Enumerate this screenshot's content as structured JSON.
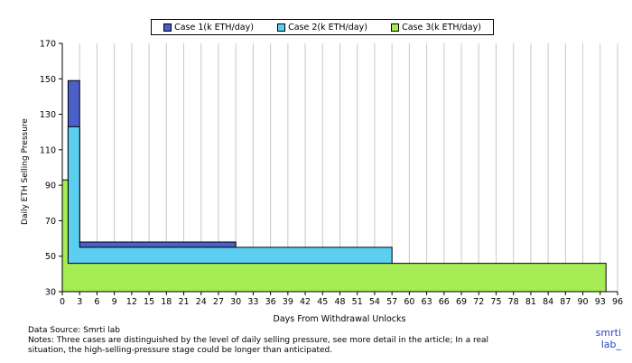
{
  "chart_data": {
    "type": "area",
    "xlabel": "Days From Withdrawal Unlocks",
    "ylabel": "Daily ETH Selling Pressure",
    "xlim": [
      0,
      96
    ],
    "ylim": [
      30,
      170
    ],
    "x_ticks": [
      "0",
      "3",
      "6",
      "9",
      "12",
      "15",
      "18",
      "21",
      "24",
      "27",
      "30",
      "33",
      "36",
      "39",
      "42",
      "45",
      "48",
      "51",
      "54",
      "57",
      "60",
      "63",
      "66",
      "69",
      "72",
      "75",
      "78",
      "81",
      "84",
      "87",
      "90",
      "93",
      "96"
    ],
    "y_ticks": [
      "30",
      "50",
      "70",
      "90",
      "110",
      "130",
      "150",
      "170"
    ],
    "grid": "vertical",
    "legend_position": "top",
    "series": [
      {
        "name": "Case 1(k ETH/day)",
        "color": "#4a5fc8",
        "points": [
          [
            0,
            70
          ],
          [
            1,
            70
          ],
          [
            1,
            92
          ],
          [
            1,
            149
          ],
          [
            3,
            149
          ],
          [
            3,
            58
          ],
          [
            30,
            58
          ],
          [
            30,
            30
          ]
        ]
      },
      {
        "name": "Case 2(k ETH/day)",
        "color": "#5ccff0",
        "points": [
          [
            0,
            49
          ],
          [
            1,
            49
          ],
          [
            1,
            123
          ],
          [
            3,
            123
          ],
          [
            3,
            55
          ],
          [
            57,
            55
          ],
          [
            57,
            30
          ]
        ]
      },
      {
        "name": "Case 3(k ETH/day)",
        "color": "#a6ec55",
        "points": [
          [
            0,
            30
          ],
          [
            0,
            93
          ],
          [
            1,
            93
          ],
          [
            1,
            46
          ],
          [
            2,
            46
          ],
          [
            94,
            46
          ],
          [
            94,
            30
          ]
        ]
      }
    ]
  },
  "notes": {
    "source": "Data Source: Smrti lab",
    "line1": "Notes: Three cases are distinguished by the level of daily selling pressure, see more detail in the article; In a real",
    "line2": "situation, the high-selling-pressure stage could be longer than anticipated."
  },
  "brand": {
    "line1": "smrti",
    "line2": "lab_"
  }
}
